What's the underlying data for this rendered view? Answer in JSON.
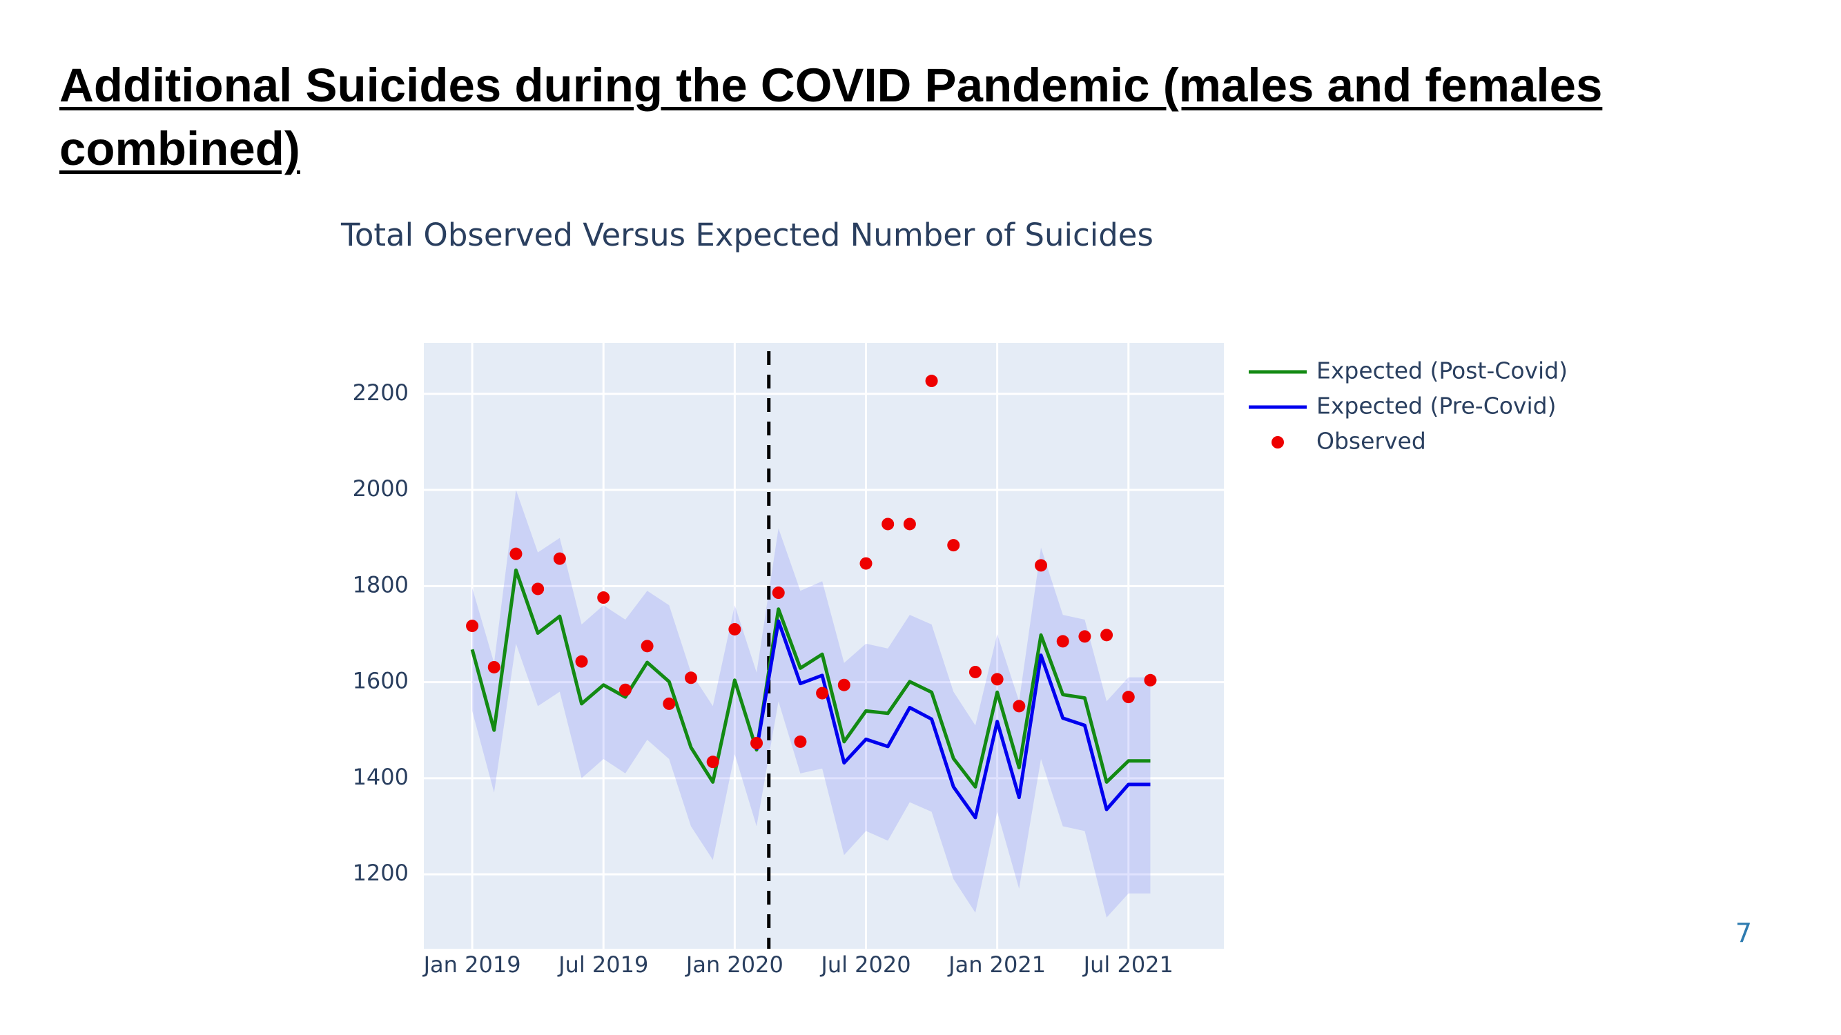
{
  "heading": "Additional Suicides during the COVID Pandemic (males and females combined)",
  "page_number": "7",
  "chart_data": {
    "type": "line",
    "title": "Total Observed Versus Expected Number of Suicides",
    "x": [
      "2019-01",
      "2019-02",
      "2019-03",
      "2019-04",
      "2019-05",
      "2019-06",
      "2019-07",
      "2019-08",
      "2019-09",
      "2019-10",
      "2019-11",
      "2019-12",
      "2020-01",
      "2020-02",
      "2020-03",
      "2020-04",
      "2020-05",
      "2020-06",
      "2020-07",
      "2020-08",
      "2020-09",
      "2020-10",
      "2020-11",
      "2020-12",
      "2021-01",
      "2021-02",
      "2021-03",
      "2021-04",
      "2021-05",
      "2021-06",
      "2021-07",
      "2021-08"
    ],
    "band": {
      "color": "rgba(99,110,250,0.2)",
      "upper": [
        1796,
        1640,
        2000,
        1870,
        1900,
        1720,
        1760,
        1730,
        1790,
        1760,
        1620,
        1550,
        1760,
        1620,
        1920,
        1790,
        1810,
        1640,
        1680,
        1670,
        1740,
        1720,
        1580,
        1510,
        1700,
        1560,
        1880,
        1740,
        1730,
        1560,
        1610,
        1610
      ],
      "lower": [
        1540,
        1370,
        1680,
        1550,
        1580,
        1400,
        1440,
        1410,
        1480,
        1440,
        1300,
        1230,
        1450,
        1300,
        1560,
        1410,
        1420,
        1240,
        1290,
        1270,
        1350,
        1330,
        1190,
        1120,
        1330,
        1170,
        1440,
        1300,
        1290,
        1110,
        1160,
        1160
      ]
    },
    "series": [
      {
        "name": "Expected (Post-Covid)",
        "color": "#138a13",
        "mode": "line",
        "values": [
          1668,
          1500,
          1833,
          1702,
          1737,
          1555,
          1594,
          1569,
          1641,
          1601,
          1464,
          1392,
          1604,
          1459,
          1752,
          1629,
          1658,
          1476,
          1540,
          1535,
          1601,
          1579,
          1441,
          1382,
          1579,
          1422,
          1698,
          1574,
          1567,
          1392,
          1436,
          1436
        ]
      },
      {
        "name": "Expected (Pre-Covid)",
        "color": "#0000ee",
        "mode": "line",
        "values": [
          null,
          null,
          null,
          null,
          null,
          null,
          null,
          null,
          null,
          null,
          null,
          null,
          null,
          1459,
          1727,
          1597,
          1614,
          1432,
          1481,
          1466,
          1547,
          1523,
          1382,
          1318,
          1518,
          1360,
          1656,
          1525,
          1510,
          1335,
          1387,
          1387
        ]
      },
      {
        "name": "Observed",
        "color": "#ee0000",
        "mode": "markers",
        "values": [
          1717,
          1631,
          1867,
          1794,
          1857,
          1643,
          1776,
          1584,
          1675,
          1555,
          1609,
          1434,
          1710,
          1473,
          1786,
          1476,
          1577,
          1594,
          1847,
          1929,
          1929,
          2227,
          1885,
          1621,
          1606,
          1550,
          1843,
          1685,
          1695,
          1698,
          1569,
          1604
        ]
      }
    ],
    "vline": "2020-02-18",
    "xlim": [
      "2018-10-25",
      "2021-11-12"
    ],
    "xticks": [
      {
        "value": "2019-01",
        "label": "Jan 2019"
      },
      {
        "value": "2019-07",
        "label": "Jul 2019"
      },
      {
        "value": "2020-01",
        "label": "Jan 2020"
      },
      {
        "value": "2020-07",
        "label": "Jul 2020"
      },
      {
        "value": "2021-01",
        "label": "Jan 2021"
      },
      {
        "value": "2021-07",
        "label": "Jul 2021"
      }
    ],
    "ylim": [
      1045,
      2306
    ],
    "yticks": [
      1200,
      1400,
      1600,
      1800,
      2000,
      2200
    ],
    "grid": true,
    "plot_bg": "#e5ecf6",
    "legend": "right"
  }
}
